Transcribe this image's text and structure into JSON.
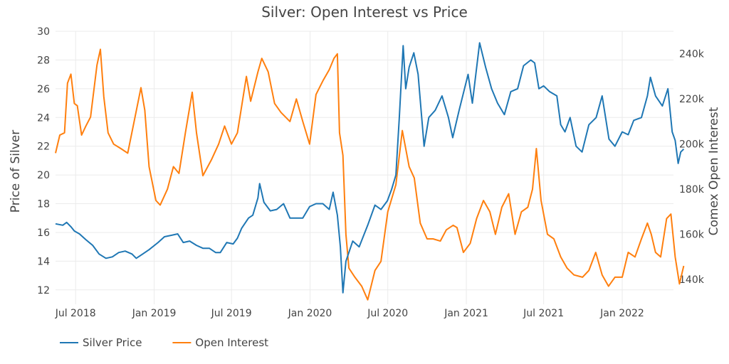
{
  "chart_data": {
    "type": "line",
    "title": "Silver: Open Interest vs Price",
    "xlabel": "",
    "ylabel": "Price of Silver",
    "y2label": "Comex Open Interest",
    "xlim": [
      "2018-05-15",
      "2022-05-01"
    ],
    "ylim": [
      11,
      30
    ],
    "y2lim": [
      129000,
      250000
    ],
    "x_ticks": [
      {
        "date": "2018-07-01",
        "label": "Jul 2018"
      },
      {
        "date": "2019-01-01",
        "label": "Jan 2019"
      },
      {
        "date": "2019-07-01",
        "label": "Jul 2019"
      },
      {
        "date": "2020-01-01",
        "label": "Jan 2020"
      },
      {
        "date": "2020-07-01",
        "label": "Jul 2020"
      },
      {
        "date": "2021-01-01",
        "label": "Jan 2021"
      },
      {
        "date": "2021-07-01",
        "label": "Jul 2021"
      },
      {
        "date": "2022-01-01",
        "label": "Jan 2022"
      }
    ],
    "y_ticks": [
      12,
      14,
      16,
      18,
      20,
      22,
      24,
      26,
      28,
      30
    ],
    "y2_ticks": [
      {
        "value": 140000,
        "label": "140k"
      },
      {
        "value": 160000,
        "label": "160k"
      },
      {
        "value": 180000,
        "label": "180k"
      },
      {
        "value": 200000,
        "label": "200k"
      },
      {
        "value": 220000,
        "label": "220k"
      },
      {
        "value": 240000,
        "label": "240k"
      }
    ],
    "legend_position": "bottom-left",
    "series": [
      {
        "name": "Silver Price",
        "axis": "y",
        "color": "#1f77b4",
        "points": [
          [
            "2018-05-15",
            16.6
          ],
          [
            "2018-06-01",
            16.5
          ],
          [
            "2018-06-10",
            16.7
          ],
          [
            "2018-06-20",
            16.4
          ],
          [
            "2018-06-28",
            16.1
          ],
          [
            "2018-07-10",
            15.9
          ],
          [
            "2018-07-25",
            15.5
          ],
          [
            "2018-08-10",
            15.1
          ],
          [
            "2018-08-25",
            14.5
          ],
          [
            "2018-09-10",
            14.2
          ],
          [
            "2018-09-25",
            14.3
          ],
          [
            "2018-10-10",
            14.6
          ],
          [
            "2018-10-25",
            14.7
          ],
          [
            "2018-11-10",
            14.5
          ],
          [
            "2018-11-20",
            14.2
          ],
          [
            "2018-12-05",
            14.5
          ],
          [
            "2018-12-20",
            14.8
          ],
          [
            "2019-01-10",
            15.3
          ],
          [
            "2019-01-25",
            15.7
          ],
          [
            "2019-02-10",
            15.8
          ],
          [
            "2019-02-25",
            15.9
          ],
          [
            "2019-03-10",
            15.3
          ],
          [
            "2019-03-25",
            15.4
          ],
          [
            "2019-04-10",
            15.1
          ],
          [
            "2019-04-25",
            14.9
          ],
          [
            "2019-05-10",
            14.9
          ],
          [
            "2019-05-25",
            14.6
          ],
          [
            "2019-06-05",
            14.6
          ],
          [
            "2019-06-20",
            15.3
          ],
          [
            "2019-07-05",
            15.2
          ],
          [
            "2019-07-15",
            15.6
          ],
          [
            "2019-07-25",
            16.3
          ],
          [
            "2019-08-10",
            17.0
          ],
          [
            "2019-08-20",
            17.2
          ],
          [
            "2019-09-01",
            18.4
          ],
          [
            "2019-09-05",
            19.4
          ],
          [
            "2019-09-15",
            18.1
          ],
          [
            "2019-09-30",
            17.5
          ],
          [
            "2019-10-15",
            17.6
          ],
          [
            "2019-10-31",
            18.0
          ],
          [
            "2019-11-15",
            17.0
          ],
          [
            "2019-12-01",
            17.0
          ],
          [
            "2019-12-15",
            17.0
          ],
          [
            "2019-12-31",
            17.8
          ],
          [
            "2020-01-15",
            18.0
          ],
          [
            "2020-01-31",
            18.0
          ],
          [
            "2020-02-15",
            17.6
          ],
          [
            "2020-02-24",
            18.8
          ],
          [
            "2020-03-05",
            17.2
          ],
          [
            "2020-03-12",
            15.0
          ],
          [
            "2020-03-18",
            11.8
          ],
          [
            "2020-03-25",
            14.0
          ],
          [
            "2020-04-10",
            15.4
          ],
          [
            "2020-04-25",
            15.0
          ],
          [
            "2020-05-15",
            16.5
          ],
          [
            "2020-06-01",
            17.9
          ],
          [
            "2020-06-15",
            17.6
          ],
          [
            "2020-06-30",
            18.2
          ],
          [
            "2020-07-10",
            19.0
          ],
          [
            "2020-07-20",
            20.0
          ],
          [
            "2020-07-28",
            24.0
          ],
          [
            "2020-08-06",
            29.0
          ],
          [
            "2020-08-12",
            26.0
          ],
          [
            "2020-08-20",
            27.5
          ],
          [
            "2020-08-31",
            28.5
          ],
          [
            "2020-09-10",
            27.0
          ],
          [
            "2020-09-24",
            22.0
          ],
          [
            "2020-10-05",
            24.0
          ],
          [
            "2020-10-20",
            24.5
          ],
          [
            "2020-11-05",
            25.5
          ],
          [
            "2020-11-20",
            24.0
          ],
          [
            "2020-11-30",
            22.6
          ],
          [
            "2020-12-15",
            24.5
          ],
          [
            "2021-01-05",
            27.0
          ],
          [
            "2021-01-15",
            25.0
          ],
          [
            "2021-02-01",
            29.2
          ],
          [
            "2021-02-15",
            27.5
          ],
          [
            "2021-03-01",
            26.0
          ],
          [
            "2021-03-15",
            25.0
          ],
          [
            "2021-03-31",
            24.2
          ],
          [
            "2021-04-15",
            25.8
          ],
          [
            "2021-05-01",
            26.0
          ],
          [
            "2021-05-15",
            27.6
          ],
          [
            "2021-06-01",
            28.0
          ],
          [
            "2021-06-10",
            27.8
          ],
          [
            "2021-06-20",
            26.0
          ],
          [
            "2021-07-01",
            26.2
          ],
          [
            "2021-07-15",
            25.8
          ],
          [
            "2021-08-01",
            25.5
          ],
          [
            "2021-08-10",
            23.5
          ],
          [
            "2021-08-20",
            23.0
          ],
          [
            "2021-09-01",
            24.0
          ],
          [
            "2021-09-15",
            22.0
          ],
          [
            "2021-09-29",
            21.6
          ],
          [
            "2021-10-15",
            23.5
          ],
          [
            "2021-11-01",
            24.0
          ],
          [
            "2021-11-15",
            25.5
          ],
          [
            "2021-12-01",
            22.5
          ],
          [
            "2021-12-15",
            22.0
          ],
          [
            "2022-01-01",
            23.0
          ],
          [
            "2022-01-15",
            22.8
          ],
          [
            "2022-01-28",
            23.8
          ],
          [
            "2022-02-15",
            24.0
          ],
          [
            "2022-03-01",
            25.5
          ],
          [
            "2022-03-08",
            26.8
          ],
          [
            "2022-03-20",
            25.5
          ],
          [
            "2022-04-05",
            24.8
          ],
          [
            "2022-04-18",
            26.0
          ],
          [
            "2022-04-28",
            23.0
          ],
          [
            "2022-05-05",
            22.4
          ],
          [
            "2022-05-12",
            20.8
          ],
          [
            "2022-05-18",
            21.6
          ],
          [
            "2022-05-25",
            21.8
          ]
        ]
      },
      {
        "name": "Open Interest",
        "axis": "y2",
        "color": "#ff7f0e",
        "points": [
          [
            "2018-05-15",
            196000
          ],
          [
            "2018-05-25",
            204000
          ],
          [
            "2018-06-05",
            205000
          ],
          [
            "2018-06-12",
            227000
          ],
          [
            "2018-06-20",
            231000
          ],
          [
            "2018-06-28",
            218000
          ],
          [
            "2018-07-05",
            217000
          ],
          [
            "2018-07-15",
            204000
          ],
          [
            "2018-07-25",
            208000
          ],
          [
            "2018-08-05",
            212000
          ],
          [
            "2018-08-20",
            235000
          ],
          [
            "2018-08-28",
            242000
          ],
          [
            "2018-09-05",
            221000
          ],
          [
            "2018-09-15",
            205000
          ],
          [
            "2018-09-28",
            200000
          ],
          [
            "2018-10-15",
            198000
          ],
          [
            "2018-10-31",
            196000
          ],
          [
            "2018-11-15",
            210000
          ],
          [
            "2018-12-01",
            225000
          ],
          [
            "2018-12-10",
            215000
          ],
          [
            "2018-12-20",
            190000
          ],
          [
            "2019-01-05",
            175000
          ],
          [
            "2019-01-15",
            173000
          ],
          [
            "2019-02-01",
            180000
          ],
          [
            "2019-02-15",
            190000
          ],
          [
            "2019-02-28",
            187000
          ],
          [
            "2019-03-15",
            205000
          ],
          [
            "2019-03-31",
            223000
          ],
          [
            "2019-04-10",
            205000
          ],
          [
            "2019-04-25",
            186000
          ],
          [
            "2019-05-15",
            193000
          ],
          [
            "2019-06-01",
            200000
          ],
          [
            "2019-06-15",
            208000
          ],
          [
            "2019-07-01",
            200000
          ],
          [
            "2019-07-15",
            205000
          ],
          [
            "2019-08-05",
            230000
          ],
          [
            "2019-08-15",
            219000
          ],
          [
            "2019-09-01",
            232000
          ],
          [
            "2019-09-10",
            238000
          ],
          [
            "2019-09-25",
            232000
          ],
          [
            "2019-10-10",
            218000
          ],
          [
            "2019-10-25",
            214000
          ],
          [
            "2019-11-15",
            210000
          ],
          [
            "2019-11-30",
            220000
          ],
          [
            "2019-12-15",
            210000
          ],
          [
            "2019-12-31",
            200000
          ],
          [
            "2020-01-15",
            222000
          ],
          [
            "2020-01-31",
            228000
          ],
          [
            "2020-02-15",
            233000
          ],
          [
            "2020-02-26",
            238000
          ],
          [
            "2020-03-05",
            240000
          ],
          [
            "2020-03-10",
            205000
          ],
          [
            "2020-03-18",
            195000
          ],
          [
            "2020-03-25",
            160000
          ],
          [
            "2020-04-01",
            145000
          ],
          [
            "2020-04-15",
            141000
          ],
          [
            "2020-05-01",
            137000
          ],
          [
            "2020-05-15",
            131000
          ],
          [
            "2020-06-01",
            144000
          ],
          [
            "2020-06-15",
            148000
          ],
          [
            "2020-07-01",
            170000
          ],
          [
            "2020-07-20",
            182000
          ],
          [
            "2020-08-04",
            206000
          ],
          [
            "2020-08-20",
            190000
          ],
          [
            "2020-09-01",
            185000
          ],
          [
            "2020-09-15",
            165000
          ],
          [
            "2020-10-01",
            158000
          ],
          [
            "2020-10-15",
            158000
          ],
          [
            "2020-11-01",
            157000
          ],
          [
            "2020-11-15",
            162000
          ],
          [
            "2020-12-01",
            164000
          ],
          [
            "2020-12-10",
            163000
          ],
          [
            "2020-12-25",
            152000
          ],
          [
            "2021-01-10",
            156000
          ],
          [
            "2021-01-25",
            167000
          ],
          [
            "2021-02-10",
            175000
          ],
          [
            "2021-02-25",
            170000
          ],
          [
            "2021-03-10",
            160000
          ],
          [
            "2021-03-25",
            172000
          ],
          [
            "2021-04-10",
            178000
          ],
          [
            "2021-04-25",
            160000
          ],
          [
            "2021-05-10",
            170000
          ],
          [
            "2021-05-25",
            172000
          ],
          [
            "2021-06-05",
            180000
          ],
          [
            "2021-06-14",
            198000
          ],
          [
            "2021-06-25",
            175000
          ],
          [
            "2021-07-10",
            160000
          ],
          [
            "2021-07-25",
            158000
          ],
          [
            "2021-08-10",
            150000
          ],
          [
            "2021-08-25",
            145000
          ],
          [
            "2021-09-10",
            142000
          ],
          [
            "2021-09-30",
            141000
          ],
          [
            "2021-10-15",
            144000
          ],
          [
            "2021-10-31",
            152000
          ],
          [
            "2021-11-15",
            142000
          ],
          [
            "2021-11-30",
            137000
          ],
          [
            "2021-12-15",
            141000
          ],
          [
            "2022-01-01",
            141000
          ],
          [
            "2022-01-15",
            152000
          ],
          [
            "2022-01-31",
            150000
          ],
          [
            "2022-02-15",
            158000
          ],
          [
            "2022-03-01",
            165000
          ],
          [
            "2022-03-10",
            160000
          ],
          [
            "2022-03-20",
            152000
          ],
          [
            "2022-04-01",
            150000
          ],
          [
            "2022-04-15",
            167000
          ],
          [
            "2022-04-25",
            169000
          ],
          [
            "2022-05-05",
            150000
          ],
          [
            "2022-05-15",
            138000
          ],
          [
            "2022-05-25",
            146000
          ]
        ]
      }
    ]
  }
}
